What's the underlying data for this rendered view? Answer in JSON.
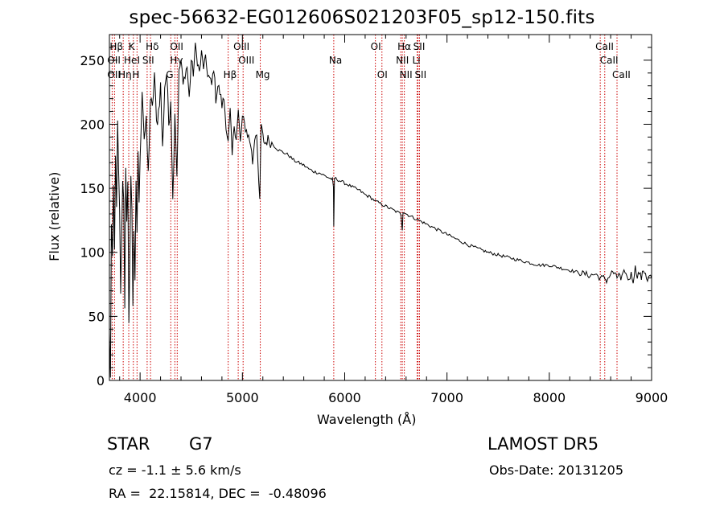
{
  "chart_data": {
    "type": "line",
    "title": "spec-56632-EG012606S021203F05_sp12-150.fits",
    "xlabel": "Wavelength (Å)",
    "ylabel": "Flux (relative)",
    "xlim": [
      3700,
      9000
    ],
    "ylim": [
      0,
      270
    ],
    "xticks": [
      4000,
      5000,
      6000,
      7000,
      8000,
      9000
    ],
    "yticks": [
      0,
      50,
      100,
      150,
      200,
      250
    ],
    "grid": false,
    "series": [
      {
        "x": [
          3700,
          3710,
          3720,
          3730,
          3740,
          3750,
          3760,
          3770,
          3780,
          3790,
          3800,
          3810,
          3820,
          3830,
          3840,
          3850,
          3860,
          3870,
          3880,
          3890,
          3900,
          3910,
          3920,
          3930,
          3940,
          3950,
          3960,
          3970,
          3980,
          3990,
          4000,
          4020,
          4040,
          4060,
          4080,
          4100,
          4120,
          4140,
          4160,
          4180,
          4200,
          4220,
          4240,
          4260,
          4280,
          4300,
          4320,
          4340,
          4360,
          4380,
          4400,
          4420,
          4440,
          4460,
          4480,
          4500,
          4520,
          4540,
          4560,
          4580,
          4600,
          4620,
          4640,
          4660,
          4680,
          4700,
          4720,
          4740,
          4760,
          4780,
          4800,
          4820,
          4840,
          4861,
          4880,
          4900,
          4920,
          4940,
          4960,
          4980,
          5000,
          5020,
          5040,
          5060,
          5080,
          5100,
          5120,
          5140,
          5160,
          5170,
          5183,
          5190,
          5200,
          5220,
          5250,
          5300,
          5350,
          5400,
          5450,
          5500,
          5550,
          5600,
          5650,
          5700,
          5750,
          5800,
          5850,
          5880,
          5890,
          5893,
          5900,
          5950,
          6000,
          6050,
          6100,
          6150,
          6200,
          6250,
          6300,
          6350,
          6400,
          6450,
          6500,
          6550,
          6563,
          6570,
          6600,
          6650,
          6700,
          6750,
          6800,
          6850,
          6900,
          6950,
          7000,
          7100,
          7200,
          7300,
          7400,
          7500,
          7600,
          7700,
          7800,
          7900,
          8000,
          8100,
          8200,
          8300,
          8400,
          8450,
          8500,
          8542,
          8560,
          8600,
          8620,
          8662,
          8680,
          8700,
          8720,
          8740,
          8760,
          8780,
          8800,
          8820,
          8840,
          8860,
          8880,
          8900,
          8920,
          8940,
          8960,
          8980,
          9000
        ],
        "y": [
          35,
          5,
          120,
          90,
          150,
          100,
          180,
          130,
          200,
          160,
          130,
          70,
          110,
          160,
          140,
          60,
          170,
          120,
          150,
          40,
          100,
          160,
          130,
          60,
          120,
          80,
          150,
          110,
          180,
          140,
          170,
          230,
          190,
          200,
          160,
          220,
          210,
          240,
          200,
          210,
          230,
          180,
          230,
          240,
          200,
          220,
          140,
          210,
          160,
          240,
          250,
          230,
          240,
          245,
          220,
          250,
          240,
          260,
          250,
          240,
          255,
          245,
          250,
          240,
          235,
          230,
          245,
          220,
          230,
          225,
          215,
          220,
          200,
          185,
          210,
          175,
          200,
          190,
          210,
          185,
          205,
          200,
          195,
          190,
          185,
          170,
          190,
          195,
          150,
          140,
          200,
          195,
          190,
          185,
          188,
          184,
          180,
          178,
          176,
          172,
          170,
          168,
          165,
          163,
          162,
          160,
          158,
          157,
          150,
          120,
          158,
          156,
          154,
          152,
          150,
          148,
          145,
          143,
          140,
          138,
          136,
          134,
          132,
          130,
          118,
          132,
          130,
          128,
          126,
          124,
          122,
          120,
          118,
          116,
          114,
          110,
          106,
          103,
          100,
          98,
          96,
          94,
          92,
          90,
          90,
          88,
          86,
          84,
          82,
          83,
          80,
          80,
          78,
          83,
          85,
          80,
          84,
          78,
          82,
          86,
          80,
          79,
          83,
          78,
          88,
          82,
          84,
          80,
          86,
          84,
          78,
          82,
          80
        ]
      }
    ],
    "line_labels": [
      {
        "text": "Hβ",
        "wl": 3750
      },
      {
        "text": "K",
        "wl": 3934
      },
      {
        "text": "Hδ",
        "wl": 4102
      },
      {
        "text": "OII",
        "wl": 4340
      },
      {
        "text": "OIII",
        "wl": 4959
      },
      {
        "text": "OI",
        "wl": 6300
      },
      {
        "text": "Hα",
        "wl": 6563
      },
      {
        "text": "SII",
        "wl": 6717
      },
      {
        "text": "CaII",
        "wl": 8498
      },
      {
        "text": "OII",
        "wl": 3727
      },
      {
        "text": "HeI",
        "wl": 3889
      },
      {
        "text": "SII",
        "wl": 4069
      },
      {
        "text": "Hγ",
        "wl": 4340
      },
      {
        "text": "OIII",
        "wl": 5007
      },
      {
        "text": "Na",
        "wl": 5893
      },
      {
        "text": "NII",
        "wl": 6548
      },
      {
        "text": "Li",
        "wl": 6708
      },
      {
        "text": "CaII",
        "wl": 8542
      },
      {
        "text": "OII",
        "wl": 3727
      },
      {
        "text": "Hη",
        "wl": 3835
      },
      {
        "text": "H",
        "wl": 3970
      },
      {
        "text": "G",
        "wl": 4300
      },
      {
        "text": "Hβ",
        "wl": 4861
      },
      {
        "text": "Mg",
        "wl": 5175
      },
      {
        "text": "OI",
        "wl": 6364
      },
      {
        "text": "NII",
        "wl": 6583
      },
      {
        "text": "SII",
        "wl": 6731
      },
      {
        "text": "CaII",
        "wl": 8662
      }
    ],
    "line_positions": [
      3727,
      3750,
      3835,
      3889,
      3934,
      3970,
      4069,
      4102,
      4300,
      4340,
      4363,
      4861,
      4959,
      5007,
      5175,
      5893,
      6300,
      6364,
      6548,
      6563,
      6583,
      6708,
      6717,
      6731,
      8498,
      8542,
      8662
    ],
    "line_color": "#cc0000"
  },
  "info": {
    "object_type": "STAR",
    "subclass": "G7",
    "survey": "LAMOST DR5",
    "cz_text": "cz = -1.1 ± 5.6 km/s",
    "obs_date": "Obs-Date: 20131205",
    "coords": "RA =  22.15814, DEC =  -0.48096"
  }
}
